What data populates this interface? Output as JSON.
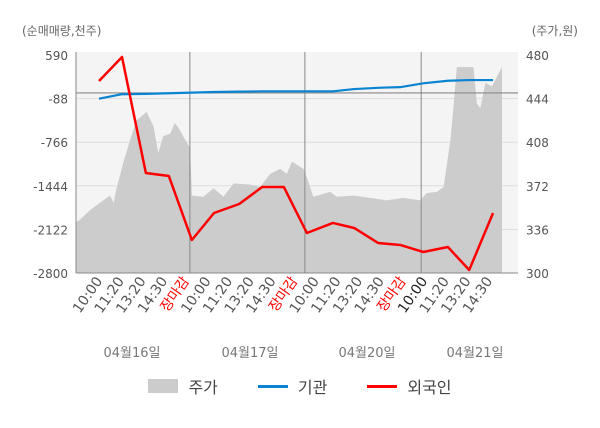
{
  "chart_data": {
    "type": "line",
    "left_axis": {
      "label": "(순매매량,천주)",
      "ticks": [
        590,
        -88,
        -766,
        -1444,
        -2122,
        -2800
      ],
      "range": [
        -2800,
        590
      ]
    },
    "right_axis": {
      "label": "(주가,원)",
      "ticks": [
        480,
        444,
        408,
        372,
        336,
        300
      ],
      "range": [
        300,
        480
      ]
    },
    "x_labels": [
      {
        "t": "10:00",
        "close": false
      },
      {
        "t": "11:20",
        "close": false
      },
      {
        "t": "13:20",
        "close": false
      },
      {
        "t": "14:30",
        "close": false
      },
      {
        "t": "장마감",
        "close": true
      },
      {
        "t": "10:00",
        "close": false
      },
      {
        "t": "11:20",
        "close": false
      },
      {
        "t": "13:20",
        "close": false
      },
      {
        "t": "14:30",
        "close": false
      },
      {
        "t": "장마감",
        "close": true
      },
      {
        "t": "10:00",
        "close": false
      },
      {
        "t": "11:20",
        "close": false
      },
      {
        "t": "13:20",
        "close": false
      },
      {
        "t": "14:30",
        "close": false
      },
      {
        "t": "장마감",
        "close": true
      },
      {
        "t": "10:00",
        "close": false
      },
      {
        "t": "11:20",
        "close": false
      },
      {
        "t": "13:20",
        "close": false
      },
      {
        "t": "14:30",
        "close": false
      }
    ],
    "dates": [
      "04월16일",
      "04월17일",
      "04월20일",
      "04월21일"
    ],
    "legend": [
      {
        "name": "주가",
        "color": "#cccccc"
      },
      {
        "name": "기관",
        "color": "#0a84d0"
      },
      {
        "name": "외국인",
        "color": "#ff0000"
      }
    ],
    "series": {
      "institution": {
        "name": "기관",
        "color": "#0a84d0",
        "x": [
          5.4,
          10.8,
          16.4,
          21.8,
          27.2,
          32.4,
          38.3,
          43.7,
          48.8,
          54.2,
          60.3,
          65.3,
          70.9,
          76.1,
          81.5,
          87.3,
          92.3,
          97.9
        ],
        "values": [
          -90,
          -20,
          -15,
          -5,
          5,
          15,
          20,
          25,
          25,
          25,
          25,
          60,
          80,
          90,
          150,
          190,
          200,
          200
        ]
      },
      "foreign": {
        "name": "외국인",
        "color": "#ff0000",
        "x": [
          5.4,
          10.8,
          16.4,
          21.8,
          27.2,
          32.4,
          38.3,
          43.7,
          48.8,
          54.2,
          60.3,
          65.3,
          70.9,
          76.1,
          81.5,
          87.3,
          92.3,
          97.9
        ],
        "values": [
          186,
          559,
          -1245,
          -1292,
          -2287,
          -1867,
          -1727,
          -1463,
          -1463,
          -2178,
          -2022,
          -2100,
          -2333,
          -2364,
          -2473,
          -2396,
          -2753,
          -1867
        ]
      },
      "price": {
        "name": "주가",
        "color": "#cccccc",
        "x": [
          0,
          0.9,
          3.3,
          6.4,
          8,
          8.8,
          9.6,
          11.1,
          12.7,
          14.2,
          16.6,
          18.2,
          19.3,
          20.5,
          22.1,
          23.2,
          24.4,
          25.6,
          26.8,
          27.2,
          29.9,
          32.3,
          34.6,
          37,
          40.9,
          43.2,
          45.6,
          47.9,
          49.5,
          50.7,
          53.4,
          54.4,
          55.7,
          59.7,
          61.2,
          65.1,
          69,
          72.9,
          76.8,
          80.8,
          82.3,
          84.7,
          86.3,
          87.9,
          88.6,
          89.4,
          93.3,
          94.1,
          94.9,
          96.1,
          97.6,
          100
        ],
        "values": [
          342,
          344,
          352,
          360,
          364,
          358,
          371,
          391,
          410,
          426,
          433,
          421,
          399,
          413,
          415,
          424,
          418,
          410,
          403,
          364,
          363,
          370,
          363,
          374,
          373,
          371,
          382,
          386,
          382,
          392,
          386,
          377,
          363,
          367,
          363,
          364,
          362,
          360,
          362,
          360,
          366,
          367,
          371,
          410,
          437,
          470,
          470,
          440,
          436,
          457,
          454,
          470
        ]
      }
    }
  }
}
